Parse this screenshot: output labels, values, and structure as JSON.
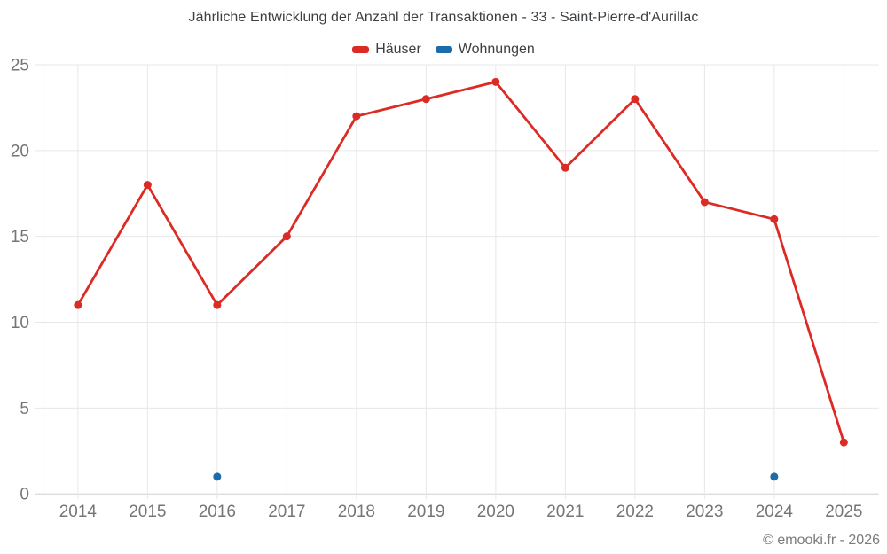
{
  "title": "Jährliche Entwicklung der Anzahl der Transaktionen - 33 - Saint-Pierre-d'Aurillac",
  "footer": "© emooki.fr - 2026",
  "theme": {
    "background": "#ffffff",
    "title_text": "#3c4043",
    "tick_text": "#757575",
    "footer_text": "#7b7b7b",
    "grid_line": "#e7e7e7",
    "axis_line": "#cfcfcf",
    "haeuser_color": "#dc2a25",
    "wohnungen_color": "#1b6ca8"
  },
  "chart_data": {
    "type": "line",
    "title": "Jährliche Entwicklung der Anzahl der Transaktionen - 33 - Saint-Pierre-d'Aurillac",
    "categories": [
      "2014",
      "2015",
      "2016",
      "2017",
      "2018",
      "2019",
      "2020",
      "2021",
      "2022",
      "2023",
      "2024",
      "2025"
    ],
    "series": [
      {
        "name": "Häuser",
        "color": "#dc2a25",
        "values": [
          11,
          18,
          11,
          15,
          22,
          23,
          24,
          19,
          23,
          17,
          16,
          3
        ]
      },
      {
        "name": "Wohnungen",
        "color": "#1b6ca8",
        "values": [
          null,
          null,
          1,
          null,
          null,
          null,
          null,
          null,
          null,
          null,
          1,
          null
        ]
      }
    ],
    "xlabel": "",
    "ylabel": "",
    "ylim": [
      0,
      25
    ],
    "yticks": [
      0,
      5,
      10,
      15,
      20,
      25
    ],
    "grid": true,
    "legend_position": "top"
  }
}
